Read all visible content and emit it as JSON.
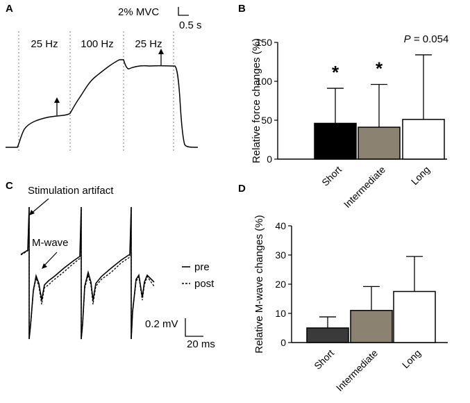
{
  "panels": {
    "a": {
      "letter": "A",
      "scale_force": "2% MVC",
      "scale_time": "0.5 s",
      "segments": [
        "25 Hz",
        "100 Hz",
        "25 Hz"
      ]
    },
    "b": {
      "letter": "B"
    },
    "c": {
      "letter": "C",
      "stim_label": "Stimulation artifact",
      "mwave_label": "M-wave",
      "legend_pre": "pre",
      "legend_post": "post",
      "scale_voltage": "0.2 mV",
      "scale_time": "20 ms"
    },
    "d": {
      "letter": "D"
    }
  },
  "colors": {
    "short_b": "#000000",
    "short_d": "#3a3a3a",
    "intermediate": "#8c8272",
    "long": "#ffffff"
  },
  "chart_data": [
    {
      "id": "B",
      "type": "bar",
      "categories": [
        "Short",
        "Intermediate",
        "Long"
      ],
      "values": [
        46,
        41,
        51
      ],
      "errors": [
        45,
        55,
        83
      ],
      "ylabel": "Relative force changes (%)",
      "ylim": [
        0,
        150
      ],
      "yticks": [
        0,
        50,
        100,
        150
      ],
      "annotations": [
        "*",
        "*",
        "P = 0.054"
      ]
    },
    {
      "id": "D",
      "type": "bar",
      "categories": [
        "Short",
        "Intermediate",
        "Long"
      ],
      "values": [
        5,
        11,
        17.5
      ],
      "errors": [
        3.8,
        8.2,
        12
      ],
      "ylabel": "Relative M-wave changes (%)",
      "ylim": [
        0,
        40
      ],
      "yticks": [
        0,
        10,
        20,
        30,
        40
      ]
    }
  ]
}
